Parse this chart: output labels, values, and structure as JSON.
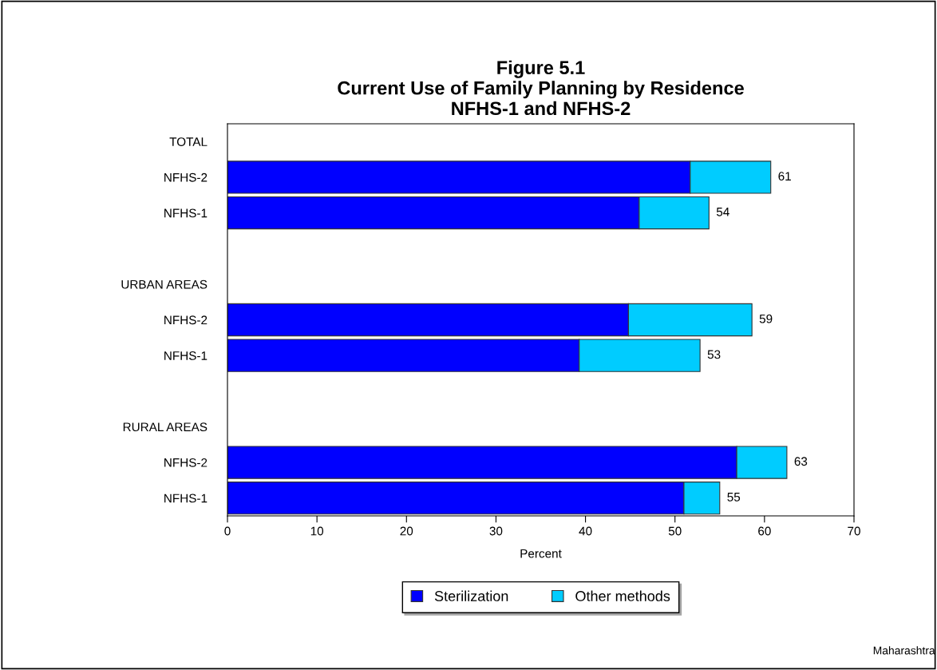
{
  "chart_data": {
    "type": "bar",
    "orientation": "horizontal",
    "stacked": true,
    "title": "Figure 5.1\nCurrent Use of Family Planning by Residence\nNFHS-1 and NFHS-2",
    "xlabel": "Percent",
    "categories": [
      "TOTAL",
      "NFHS-2",
      "NFHS-1",
      null,
      "URBAN AREAS",
      "NFHS-2",
      "NFHS-1",
      null,
      "RURAL AREAS",
      "NFHS-2",
      "NFHS-1"
    ],
    "series": [
      {
        "name": "Sterilization",
        "color": "#0000ff",
        "values": [
          null,
          51.7,
          46.0,
          null,
          null,
          44.8,
          39.3,
          null,
          null,
          56.9,
          51.0
        ]
      },
      {
        "name": "Other methods",
        "color": "#00ccff",
        "values": [
          null,
          9.0,
          7.8,
          null,
          null,
          13.8,
          13.5,
          null,
          null,
          5.6,
          4.0
        ]
      }
    ],
    "totals": [
      null,
      "61",
      "54",
      null,
      null,
      "59",
      "53",
      null,
      null,
      "63",
      "55"
    ],
    "xlim": [
      0,
      70
    ],
    "xticks": [
      0,
      10,
      20,
      30,
      40,
      50,
      60,
      70
    ],
    "legend": "bottom",
    "grid": false,
    "annotations": [
      "Maharashtra"
    ]
  }
}
